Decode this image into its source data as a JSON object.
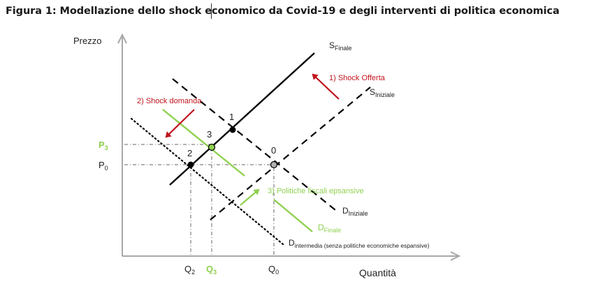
{
  "title": "Figura 1: Modellazione dello shock economico da Covid-19 e degli interventi di politica economica",
  "axes": {
    "y_label": "Prezzo",
    "x_label": "Quantità"
  },
  "curves": {
    "s_finale": {
      "main": "S",
      "sub": "Finale"
    },
    "s_iniziale": {
      "main": "S",
      "sub": "Iniziale"
    },
    "d_iniziale": {
      "main": "D",
      "sub": "Iniziale"
    },
    "d_finale": {
      "main": "D",
      "sub": "Finale"
    },
    "d_intermedia": {
      "main": "D",
      "sub": "intermedia (senza politiche economiche espansive)"
    }
  },
  "annotations": {
    "shock_offerta": "1) Shock Offerta",
    "shock_domanda": "2) Shock domanda",
    "politiche": "3) Politiche fiscali epsansive"
  },
  "points": {
    "p0": "0",
    "p1": "1",
    "p2": "2",
    "p3": "3"
  },
  "y_ticks": {
    "p3": {
      "main": "P",
      "sub": "3"
    },
    "p0": {
      "main": "P",
      "sub": "0"
    }
  },
  "x_ticks": {
    "q2": {
      "main": "Q",
      "sub": "2"
    },
    "q3": {
      "main": "Q",
      "sub": "3"
    },
    "q0": {
      "main": "Q",
      "sub": "0"
    }
  },
  "colors": {
    "red": "#c0141c",
    "green": "#8fd14f",
    "black": "#000000",
    "grey_point": "#b0b0b0"
  }
}
